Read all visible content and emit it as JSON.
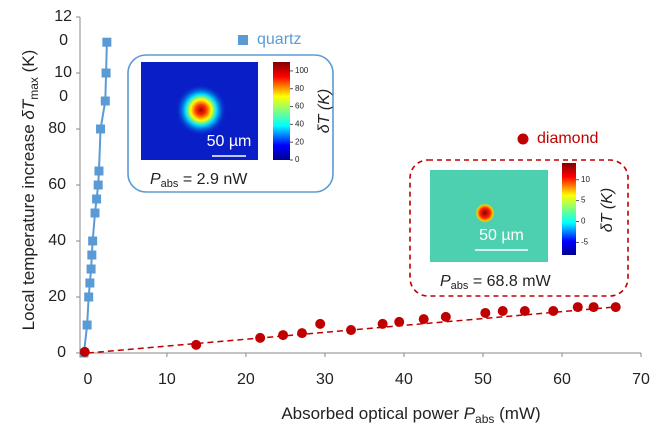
{
  "chart_data": {
    "type": "scatter",
    "x_label": {
      "text": "Absorbed optical power ",
      "symbol": "P",
      "sub": "abs",
      "unit": " (mW)"
    },
    "y_label": {
      "text": "Local temperature increase ",
      "symbol": "δT",
      "sub": "max",
      "unit": " (K)"
    },
    "xlim": [
      -1,
      70
    ],
    "xticks": [
      0,
      10,
      20,
      30,
      40,
      50,
      60,
      70
    ],
    "ylim": [
      0,
      120
    ],
    "yticks": [
      0,
      20,
      40,
      60,
      80,
      {
        "value": 100,
        "label": [
          "10",
          "0"
        ]
      },
      {
        "value": 120,
        "label": [
          "12",
          "0"
        ]
      }
    ],
    "series": [
      {
        "name": "quartz",
        "color": "#5b9bd5",
        "marker": "square",
        "line": "solid",
        "x": [
          -0.5,
          -0.1,
          0.1,
          0.25,
          0.4,
          0.5,
          0.6,
          0.9,
          1.1,
          1.3,
          1.4,
          1.6,
          2.2,
          2.3,
          2.4
        ],
        "values": [
          0,
          10,
          20,
          25,
          30,
          35,
          40,
          50,
          55,
          60,
          65,
          80,
          90,
          100,
          111
        ]
      },
      {
        "name": "diamond",
        "color": "#c00000",
        "marker": "circle",
        "line": "dashed",
        "x": [
          -0.4,
          13.7,
          21.8,
          24.7,
          27.1,
          29.4,
          33.3,
          37.3,
          39.4,
          42.5,
          45.3,
          50.3,
          52.5,
          55.3,
          58.9,
          62,
          64,
          66.8
        ],
        "values": [
          0.4,
          2.9,
          5.4,
          6.4,
          7.1,
          10.4,
          8.2,
          10.4,
          11.1,
          12.1,
          12.9,
          14.3,
          15,
          15,
          15,
          16.4,
          16.4,
          16.4
        ],
        "fit": {
          "x": [
            0,
            67
          ],
          "values": [
            0,
            16.5
          ]
        }
      }
    ],
    "insets": [
      {
        "scale_bar": "50 µm",
        "power": {
          "symbol": "P",
          "sub": "abs",
          "rest": " = 2.9 nW"
        },
        "colorbar_label": "δT (K)",
        "clim": [
          0,
          110
        ],
        "cticks": [
          0,
          20,
          40,
          60,
          80,
          100
        ]
      },
      {
        "scale_bar": "50 µm",
        "power": {
          "symbol": "P",
          "sub": "abs",
          "rest": " = 68.8 mW"
        },
        "colorbar_label": "δT (K)",
        "clim": [
          -8,
          14
        ],
        "cticks": [
          -5,
          0,
          5,
          10
        ]
      }
    ]
  }
}
